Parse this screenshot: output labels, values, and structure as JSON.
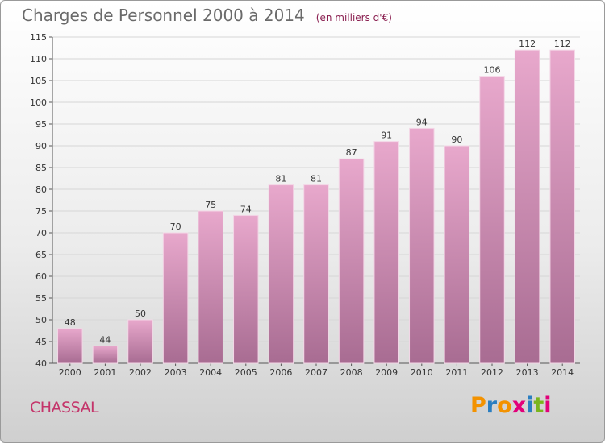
{
  "title": "Charges de Personnel 2000 à 2014",
  "subtitle": "(en milliers d'€)",
  "commune": "CHASSAL",
  "logo": {
    "text": "Proxiti",
    "letters": [
      "P",
      "r",
      "o",
      "x",
      "i",
      "t",
      "i"
    ],
    "colors": [
      "#f39200",
      "#2a7ec1",
      "#f39200",
      "#e2007a",
      "#2a7ec1",
      "#7ab51d",
      "#e2007a"
    ]
  },
  "colors": {
    "bar_top": "#e8a8cc",
    "bar_bottom": "#a86c92",
    "accent": "#c4346a"
  },
  "chart_data": {
    "type": "bar",
    "title": "Charges de Personnel 2000 à 2014",
    "subtitle": "(en milliers d'€)",
    "categories": [
      "2000",
      "2001",
      "2002",
      "2003",
      "2004",
      "2005",
      "2006",
      "2007",
      "2008",
      "2009",
      "2010",
      "2011",
      "2012",
      "2013",
      "2014"
    ],
    "values": [
      48,
      44,
      50,
      70,
      75,
      74,
      81,
      81,
      87,
      91,
      94,
      90,
      106,
      112,
      112
    ],
    "ylim": [
      40,
      115
    ],
    "yticks": [
      40,
      45,
      50,
      55,
      60,
      65,
      70,
      75,
      80,
      85,
      90,
      95,
      100,
      105,
      110,
      115
    ],
    "grid": true,
    "xlabel": "",
    "ylabel": ""
  }
}
